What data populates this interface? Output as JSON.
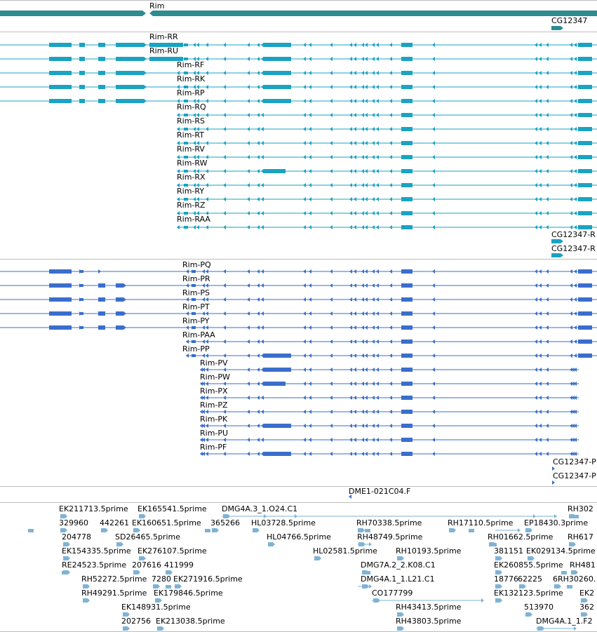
{
  "colors": {
    "gene": "#2e8b8f",
    "transcript_a": "#1aa3c2",
    "transcript_b": "#3a6ecb",
    "est": "#7fb3d6",
    "divider": "#bdbdbd"
  },
  "genes": {
    "rim_label": "Rim",
    "cg_label": "CG12347"
  },
  "transcripts_a": [
    "Rim-RR",
    "Rim-RU",
    "Rim-RF",
    "Rim-RK",
    "Rim-RP",
    "Rim-RQ",
    "Rim-RS",
    "Rim-RT",
    "Rim-RV",
    "Rim-RW",
    "Rim-RX",
    "Rim-RY",
    "Rim-RZ",
    "Rim-RAA"
  ],
  "cg_transcripts_a": [
    "CG12347-R",
    "CG12347-R"
  ],
  "transcripts_b": [
    "Rim-PQ",
    "Rim-PR",
    "Rim-PS",
    "Rim-PT",
    "Rim-PY",
    "Rim-PAA",
    "Rim-PP",
    "Rim-PV",
    "Rim-PW",
    "Rim-PX",
    "Rim-PZ",
    "Rim-PK",
    "Rim-PU",
    "Rim-PF"
  ],
  "cg_transcripts_b": [
    "CG12347-P",
    "CG12347-P"
  ],
  "primer": "DME1-021C04.F",
  "est_labels": [
    "EK211713.5prime",
    "EK165541.5prime",
    "DMG4A.3_1.O24.C1",
    "RH302",
    "329960",
    "442261",
    "EK160651.5prime",
    "365266",
    "HL03728.5prime",
    "RH70338.5prime",
    "RH17110.5prime",
    "EP18430.3prime",
    "204778",
    "SD26465.5prime",
    "HL04766.5prime",
    "RH48749.5prime",
    "RH01662.5prime",
    "RH617",
    "EK154335.5prime",
    "EK276107.5prime",
    "HL02581.5prime",
    "RH10193.5prime",
    "381151",
    "EK029134.5prime",
    "RE24523.5prime",
    "207616",
    "411999",
    "DMG7A.2_2.K08.C1",
    "EK260855.5prime",
    "RH481",
    "RH52272.5prime",
    "7280",
    "EK271916.5prime",
    "DMG4A.1_1.L21.C1",
    "18776",
    "62225",
    "6RH30260.",
    "RH49291.5prime",
    "EK179846.5prime",
    "CO177799",
    "EK132123.5prime",
    "EK2",
    "EK148931.5prime",
    "RH43413.5prime",
    "513970",
    "362",
    "202756",
    "EK213038.5prime",
    "RH43803.5prime",
    "DMG4A.1_1.F2"
  ]
}
